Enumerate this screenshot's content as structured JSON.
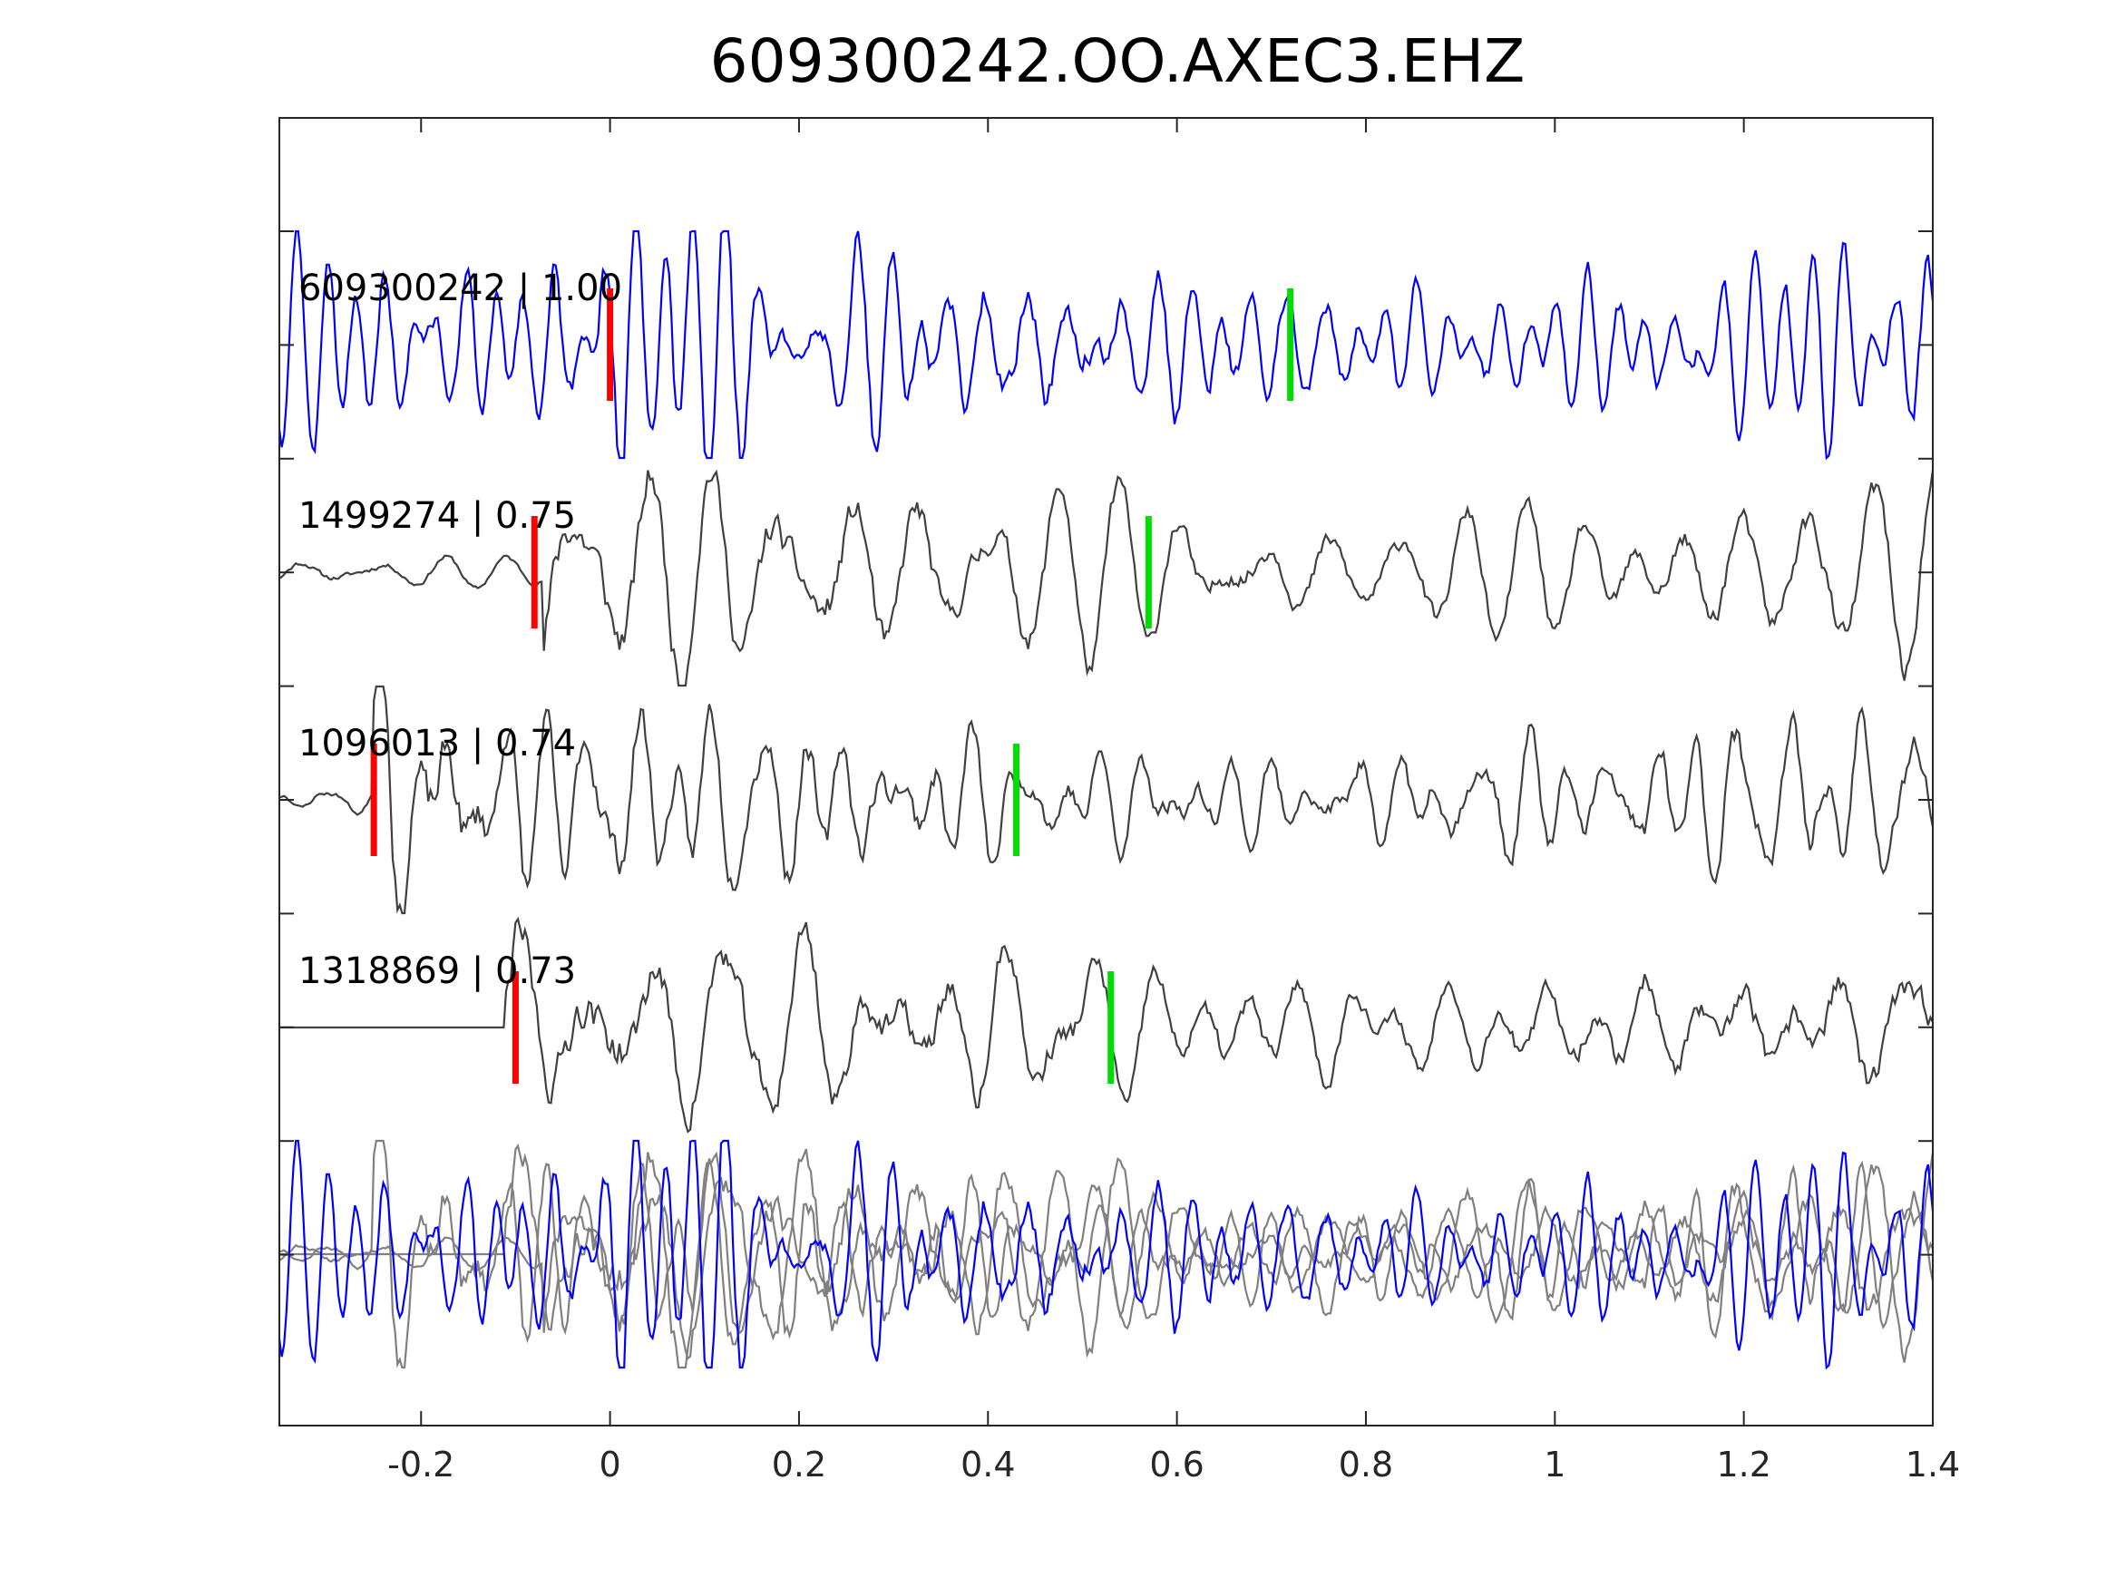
{
  "chart_data": {
    "type": "line",
    "title": "609300242.OO.AXEC3.EHZ",
    "xlabel": "",
    "ylabel": "",
    "xlim": [
      -0.35,
      1.4
    ],
    "x_ticks": [
      -0.2,
      0,
      0.2,
      0.4,
      0.6,
      0.8,
      1,
      1.2,
      1.4
    ],
    "x_tick_labels": [
      "-0.2",
      "0",
      "0.2",
      "0.4",
      "0.6",
      "0.8",
      "1",
      "1.2",
      "1.4"
    ],
    "grid": false,
    "colors": {
      "master": "#0000ff",
      "neighbor": "#404040",
      "overlay_neighbor": "#808080",
      "p_pick": "#ff0000",
      "s_pick": "#00dd00",
      "axes": "#262626"
    },
    "traces": [
      {
        "label": "609300242 | 1.00",
        "event_id": "609300242",
        "correlation": "1.00",
        "role": "master",
        "p_pick": 0.0,
        "s_pick": 0.72,
        "amplitude": 1.0,
        "pre_amplitude": 0.55,
        "onset": -0.01,
        "frequency": 24,
        "seed": 3
      },
      {
        "label": "1499274 | 0.75",
        "event_id": "1499274",
        "correlation": "0.75",
        "role": "neighbor",
        "p_pick": -0.08,
        "s_pick": 0.57,
        "amplitude": 1.0,
        "pre_amplitude": 0.12,
        "onset": -0.07,
        "frequency": 18,
        "seed": 11
      },
      {
        "label": "1096013 | 0.74",
        "event_id": "1096013",
        "correlation": "0.74",
        "role": "neighbor",
        "p_pick": -0.25,
        "s_pick": 0.43,
        "amplitude": 1.05,
        "pre_amplitude": 0.1,
        "onset": -0.25,
        "frequency": 19,
        "seed": 23
      },
      {
        "label": "1318869 | 0.73",
        "event_id": "1318869",
        "correlation": "0.73",
        "role": "neighbor",
        "p_pick": -0.1,
        "s_pick": 0.53,
        "amplitude": 1.05,
        "pre_amplitude": 0.0,
        "onset": -0.11,
        "frequency": 14,
        "seed": 37
      }
    ],
    "overlay": {
      "description_in_chart": "",
      "includes": [
        "609300242",
        "1499274",
        "1096013",
        "1318869"
      ]
    }
  }
}
